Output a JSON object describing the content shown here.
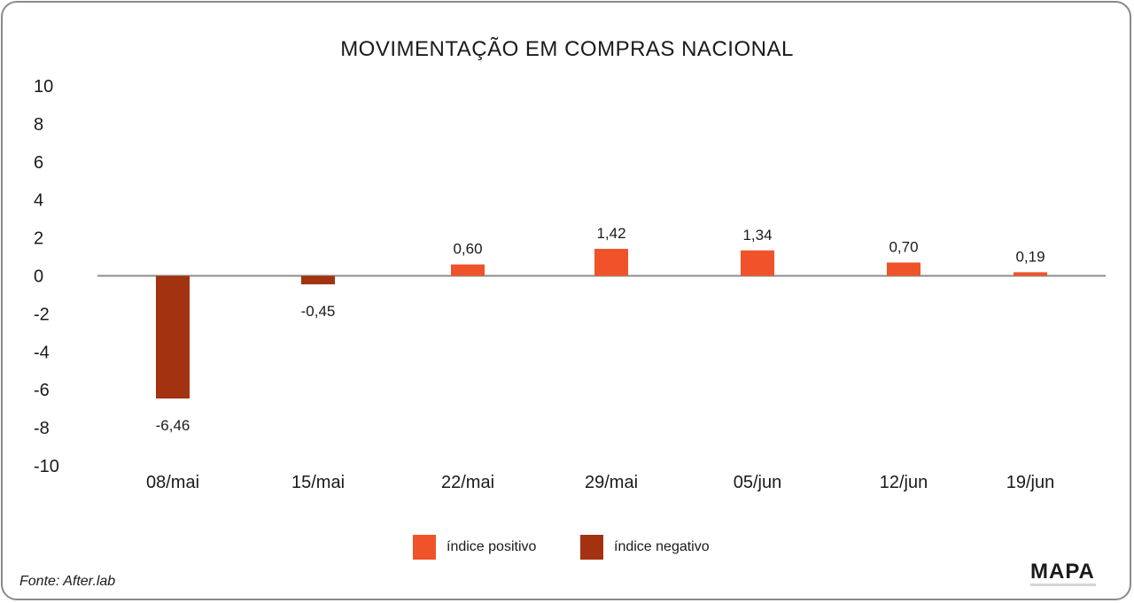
{
  "chart_data": {
    "type": "bar",
    "title": "MOVIMENTAÇÃO EM COMPRAS NACIONAL",
    "categories": [
      "08/mai",
      "15/mai",
      "22/mai",
      "29/mai",
      "05/jun",
      "12/jun",
      "19/jun"
    ],
    "values": [
      -6.46,
      -0.45,
      0.6,
      1.42,
      1.34,
      0.7,
      0.19
    ],
    "value_labels": [
      "-6,46",
      "-0,45",
      "0,60",
      "1,42",
      "1,34",
      "0,70",
      "0,19"
    ],
    "ylim": [
      -10,
      10
    ],
    "yticks": [
      10,
      8,
      6,
      4,
      2,
      0,
      -2,
      -4,
      -6,
      -8,
      -10
    ],
    "legend": [
      {
        "label": "índice positivo",
        "color": "#f0532a"
      },
      {
        "label": "índice negativo",
        "color": "#a33210"
      }
    ],
    "xlabel": "",
    "ylabel": ""
  },
  "source": "Fonte: After.lab",
  "logo": "MAPA"
}
